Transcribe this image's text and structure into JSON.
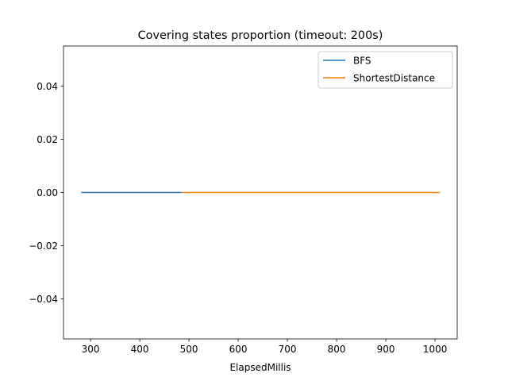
{
  "chart_data": {
    "type": "line",
    "title": "Covering states proportion (timeout: 200s)",
    "xlabel": "ElapsedMillis",
    "ylabel": "",
    "xlim": [
      245,
      1045
    ],
    "ylim": [
      -0.055,
      0.055
    ],
    "xticks": [
      300,
      400,
      500,
      600,
      700,
      800,
      900,
      1000
    ],
    "xtick_labels": [
      "300",
      "400",
      "500",
      "600",
      "700",
      "800",
      "900",
      "1000"
    ],
    "yticks": [
      -0.04,
      -0.02,
      0.0,
      0.02,
      0.04
    ],
    "ytick_labels": [
      "−0.04",
      "−0.02",
      "0.00",
      "0.02",
      "0.04"
    ],
    "grid": false,
    "legend_position": "top-right",
    "series": [
      {
        "name": "BFS",
        "color": "#1f77b4",
        "x": [
          281,
          485
        ],
        "y": [
          0.0,
          0.0
        ]
      },
      {
        "name": "ShortestDistance",
        "color": "#ff7f0e",
        "x": [
          485,
          1010
        ],
        "y": [
          0.0,
          0.0
        ]
      }
    ]
  }
}
